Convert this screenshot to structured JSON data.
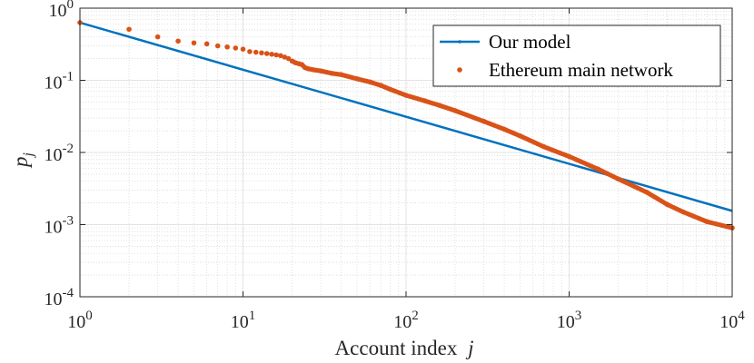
{
  "chart_data": {
    "type": "line",
    "title": "",
    "xlabel": "Account index",
    "xlabel_var": "j",
    "ylabel_base": "p",
    "ylabel_sub": "j",
    "x_scale": "log",
    "y_scale": "log",
    "xlim": [
      1,
      10000
    ],
    "ylim": [
      0.0001,
      1
    ],
    "grid": true,
    "minor_grid": true,
    "legend_position": "top-right",
    "x_ticks": [
      {
        "value": 1,
        "base": "10",
        "exp": "0"
      },
      {
        "value": 10,
        "base": "10",
        "exp": "1"
      },
      {
        "value": 100,
        "base": "10",
        "exp": "2"
      },
      {
        "value": 1000,
        "base": "10",
        "exp": "3"
      },
      {
        "value": 10000,
        "base": "10",
        "exp": "4"
      }
    ],
    "y_ticks": [
      {
        "value": 0.0001,
        "base": "10",
        "exp": "-4"
      },
      {
        "value": 0.001,
        "base": "10",
        "exp": "-3"
      },
      {
        "value": 0.01,
        "base": "10",
        "exp": "-2"
      },
      {
        "value": 0.1,
        "base": "10",
        "exp": "-1"
      },
      {
        "value": 1,
        "base": "10",
        "exp": "0"
      }
    ],
    "series": [
      {
        "name": "Our model",
        "color": "#0072BD",
        "style": "line",
        "x": [
          1,
          10000
        ],
        "y": [
          0.63,
          0.00155
        ]
      },
      {
        "name": "Ethereum main network",
        "color": "#D95319",
        "style": "points",
        "x": [
          1,
          2,
          3,
          4,
          5,
          6,
          7,
          8,
          9,
          10,
          11,
          12,
          13,
          14,
          15,
          16,
          17,
          18,
          19,
          20,
          21,
          22,
          23,
          24,
          25,
          27,
          30,
          35,
          40,
          50,
          60,
          70,
          80,
          100,
          130,
          160,
          200,
          300,
          400,
          500,
          700,
          1000,
          1500,
          2000,
          3000,
          4000,
          5000,
          7000,
          10000
        ],
        "y": [
          0.63,
          0.51,
          0.4,
          0.35,
          0.33,
          0.32,
          0.3,
          0.29,
          0.28,
          0.27,
          0.25,
          0.245,
          0.24,
          0.235,
          0.23,
          0.225,
          0.22,
          0.21,
          0.2,
          0.185,
          0.175,
          0.17,
          0.165,
          0.15,
          0.145,
          0.14,
          0.135,
          0.125,
          0.12,
          0.105,
          0.095,
          0.085,
          0.075,
          0.062,
          0.052,
          0.045,
          0.038,
          0.027,
          0.021,
          0.017,
          0.012,
          0.0088,
          0.0059,
          0.0043,
          0.0028,
          0.0019,
          0.0015,
          0.0011,
          0.0009
        ]
      }
    ]
  }
}
